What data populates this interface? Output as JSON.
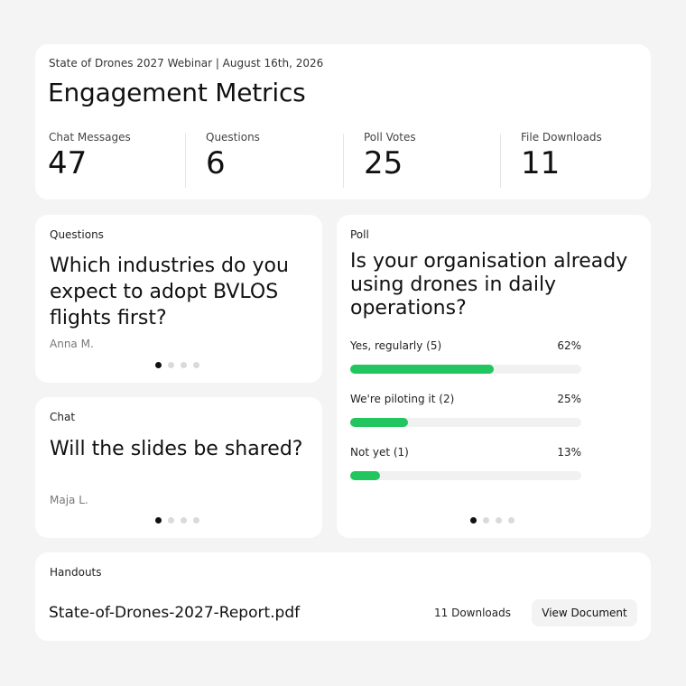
{
  "header": {
    "event_line": "State of Drones 2027 Webinar | August 16th, 2026",
    "title": "Engagement Metrics"
  },
  "metrics": [
    {
      "label": "Chat Messages",
      "value": "47"
    },
    {
      "label": "Questions",
      "value": "6"
    },
    {
      "label": "Poll Votes",
      "value": "25"
    },
    {
      "label": "File Downloads",
      "value": "11"
    }
  ],
  "questions": {
    "label": "Questions",
    "text": "Which industries do you expect to adopt BVLOS flights first?",
    "author": "Anna M.",
    "page_count": 4,
    "active_page": 1
  },
  "chat": {
    "label": "Chat",
    "text": "Will the slides be shared?",
    "author": "Maja L.",
    "page_count": 4,
    "active_page": 1
  },
  "poll": {
    "label": "Poll",
    "question": "Is your organisation already using drones in daily operations?",
    "options": [
      {
        "label": "Yes, regularly (5)",
        "percent_label": "62%",
        "percent": 62
      },
      {
        "label": "We're piloting it (2)",
        "percent_label": "25%",
        "percent": 25
      },
      {
        "label": "Not yet (1)",
        "percent_label": "13%",
        "percent": 13
      }
    ],
    "accent_color": "#22c55e",
    "page_count": 4,
    "active_page": 1
  },
  "handouts": {
    "label": "Handouts",
    "file_name": "State-of-Drones-2027-Report.pdf",
    "downloads": "11 Downloads",
    "button_label": "View Document"
  }
}
